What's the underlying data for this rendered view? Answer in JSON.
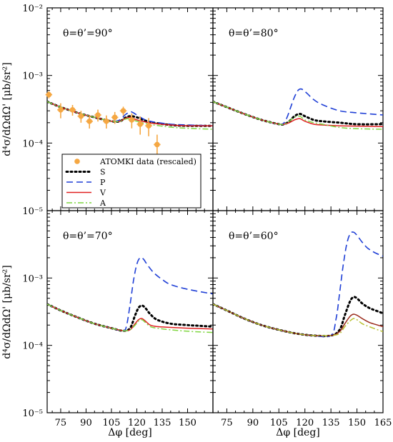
{
  "chart_data": {
    "type": "line",
    "shared_ylabel": "d⁴σ/dΩdΩ' [μb/sr²]",
    "shared_xlabel": "Δφ [deg]",
    "ylim": [
      1e-05,
      0.01
    ],
    "yscale": "log",
    "xlim": [
      67,
      165
    ],
    "x_ticks": [
      75,
      90,
      105,
      120,
      135,
      150,
      165
    ],
    "y_tick_labels": [
      "10⁻⁵",
      "10⁻⁴",
      "10⁻³",
      "10⁻²"
    ],
    "legend": {
      "placement": "lower-left of top-left panel",
      "entries": [
        {
          "label": "ATOMKI data (rescaled)",
          "style": "marker",
          "color": "#f5a742"
        },
        {
          "label": "S",
          "style": "dotted",
          "color": "#000000"
        },
        {
          "label": "P",
          "style": "dashed",
          "color": "#1f3fd6"
        },
        {
          "label": "V",
          "style": "solid",
          "color": "#e02020"
        },
        {
          "label": "A",
          "style": "dashdot",
          "color": "#7fd640"
        }
      ]
    },
    "panels": [
      {
        "id": "p90",
        "label": "θ=θ’=90°",
        "series": [
          {
            "name": "S",
            "x": [
              67,
              75,
              85,
              95,
              105,
              110,
              113,
              116,
              120,
              125,
              130,
              140,
              150,
              165
            ],
            "y": [
              0.00041,
              0.00034,
              0.00028,
              0.00024,
              0.00021,
              0.00021,
              0.000235,
              0.00025,
              0.00024,
              0.000215,
              0.0002,
              0.000185,
              0.00018,
              0.00018
            ]
          },
          {
            "name": "P",
            "x": [
              67,
              75,
              85,
              95,
              105,
              110,
              113,
              116,
              118,
              120,
              125,
              130,
              140,
              150,
              165
            ],
            "y": [
              0.00041,
              0.00034,
              0.00028,
              0.00024,
              0.00021,
              0.00022,
              0.00026,
              0.00029,
              0.00028,
              0.00026,
              0.00022,
              0.000205,
              0.00019,
              0.000185,
              0.00018
            ]
          },
          {
            "name": "V",
            "x": [
              67,
              75,
              85,
              95,
              105,
              110,
              113,
              116,
              120,
              125,
              130,
              140,
              150,
              165
            ],
            "y": [
              0.00041,
              0.00034,
              0.00028,
              0.00024,
              0.00021,
              0.00021,
              0.00023,
              0.00024,
              0.00022,
              0.000205,
              0.000195,
              0.000185,
              0.00018,
              0.00018
            ]
          },
          {
            "name": "A",
            "x": [
              67,
              75,
              85,
              95,
              105,
              110,
              113,
              116,
              120,
              125,
              130,
              140,
              150,
              165
            ],
            "y": [
              0.00041,
              0.00034,
              0.00028,
              0.00024,
              0.00021,
              0.00021,
              0.000225,
              0.00023,
              0.00021,
              0.000195,
              0.000185,
              0.000172,
              0.000165,
              0.00016
            ]
          }
        ],
        "data_points": {
          "name": "ATOMKI data (rescaled)",
          "x": [
            68,
            75,
            82,
            87,
            92,
            97,
            102,
            107,
            112,
            117,
            122,
            127,
            132
          ],
          "y": [
            0.00052,
            0.00031,
            0.00031,
            0.00025,
            0.00021,
            0.00026,
            0.00021,
            0.00024,
            0.0003,
            0.00022,
            0.00019,
            0.00018,
            9.5e-05
          ],
          "xerr": [
            2,
            2,
            2,
            2,
            2,
            2,
            2,
            2,
            2,
            2,
            2,
            2,
            2
          ],
          "yerr_frac": [
            0.12,
            0.25,
            0.18,
            0.2,
            0.22,
            0.2,
            0.22,
            0.2,
            0.15,
            0.25,
            0.3,
            0.3,
            0.4
          ]
        }
      },
      {
        "id": "p80",
        "label": "θ=θ’=80°",
        "series": [
          {
            "name": "S",
            "x": [
              67,
              75,
              85,
              95,
              105,
              108,
              111,
              114,
              117,
              120,
              125,
              130,
              140,
              150,
              165
            ],
            "y": [
              0.00041,
              0.00034,
              0.00027,
              0.00022,
              0.00019,
              0.00019,
              0.00021,
              0.00025,
              0.00027,
              0.00025,
              0.00022,
              0.00021,
              0.0002,
              0.00019,
              0.00019
            ]
          },
          {
            "name": "P",
            "x": [
              67,
              75,
              85,
              95,
              105,
              108,
              110,
              112,
              114,
              116,
              118,
              121,
              125,
              130,
              140,
              150,
              165
            ],
            "y": [
              0.00041,
              0.00034,
              0.00027,
              0.00022,
              0.00019,
              0.0002,
              0.00025,
              0.00035,
              0.00048,
              0.0006,
              0.00063,
              0.00055,
              0.00044,
              0.00037,
              0.0003,
              0.00028,
              0.00026
            ]
          },
          {
            "name": "V",
            "x": [
              67,
              75,
              85,
              95,
              105,
              108,
              111,
              114,
              117,
              120,
              125,
              130,
              140,
              150,
              165
            ],
            "y": [
              0.00041,
              0.00034,
              0.00027,
              0.00022,
              0.00019,
              0.00019,
              0.0002,
              0.00022,
              0.00023,
              0.00021,
              0.00019,
              0.000185,
              0.00018,
              0.000178,
              0.000175
            ]
          },
          {
            "name": "A",
            "x": [
              67,
              75,
              85,
              95,
              105,
              108,
              111,
              114,
              117,
              120,
              125,
              130,
              140,
              150,
              165
            ],
            "y": [
              0.00041,
              0.00034,
              0.00027,
              0.00022,
              0.00019,
              0.00019,
              0.00021,
              0.00024,
              0.00025,
              0.00022,
              0.0002,
              0.00019,
              0.00017,
              0.000163,
              0.00016
            ]
          }
        ]
      },
      {
        "id": "p70",
        "label": "θ=θ’=70°",
        "series": [
          {
            "name": "S",
            "x": [
              67,
              75,
              85,
              95,
              105,
              112,
              116,
              119,
              121,
              123,
              125,
              128,
              132,
              140,
              150,
              165
            ],
            "y": [
              0.00041,
              0.00033,
              0.00026,
              0.00021,
              0.00018,
              0.000165,
              0.00018,
              0.00028,
              0.00036,
              0.00039,
              0.00036,
              0.00029,
              0.00024,
              0.00021,
              0.0002,
              0.00019
            ]
          },
          {
            "name": "P",
            "x": [
              67,
              75,
              85,
              95,
              105,
              112,
              114,
              116,
              118,
              120,
              122,
              124,
              126,
              130,
              135,
              140,
              150,
              165
            ],
            "y": [
              0.00041,
              0.00033,
              0.00026,
              0.00021,
              0.00018,
              0.000165,
              0.0002,
              0.0004,
              0.0009,
              0.0016,
              0.002,
              0.0019,
              0.0016,
              0.0012,
              0.00095,
              0.0008,
              0.00068,
              0.00058
            ]
          },
          {
            "name": "V",
            "x": [
              67,
              75,
              85,
              95,
              105,
              112,
              116,
              119,
              121,
              123,
              125,
              128,
              132,
              140,
              150,
              165
            ],
            "y": [
              0.00041,
              0.00033,
              0.00026,
              0.00021,
              0.00018,
              0.000165,
              0.00017,
              0.00021,
              0.00024,
              0.00025,
              0.00023,
              0.0002,
              0.00019,
              0.000185,
              0.00018,
              0.000175
            ]
          },
          {
            "name": "A",
            "x": [
              67,
              75,
              85,
              95,
              105,
              112,
              116,
              119,
              121,
              123,
              125,
              128,
              132,
              140,
              150,
              165
            ],
            "y": [
              0.00041,
              0.00033,
              0.00026,
              0.00021,
              0.00018,
              0.000165,
              0.00017,
              0.0002,
              0.00023,
              0.00024,
              0.00022,
              0.00019,
              0.00018,
              0.00017,
              0.000162,
              0.000155
            ]
          }
        ]
      },
      {
        "id": "p60",
        "label": "θ=θ’=60°",
        "series": [
          {
            "name": "S",
            "x": [
              67,
              75,
              85,
              95,
              105,
              115,
              125,
              135,
              140,
              143,
              146,
              148,
              150,
              153,
              157,
              162,
              165
            ],
            "y": [
              0.00041,
              0.00033,
              0.00025,
              0.0002,
              0.00017,
              0.00015,
              0.00014,
              0.00014,
              0.00017,
              0.00028,
              0.00045,
              0.00052,
              0.0005,
              0.00042,
              0.00036,
              0.00032,
              0.0003
            ]
          },
          {
            "name": "P",
            "x": [
              67,
              75,
              85,
              95,
              105,
              115,
              125,
              135,
              138,
              140,
              142,
              144,
              146,
              148,
              150,
              153,
              156,
              160,
              165
            ],
            "y": [
              0.00041,
              0.00033,
              0.00025,
              0.0002,
              0.00017,
              0.00015,
              0.00014,
              0.00014,
              0.00025,
              0.0006,
              0.0015,
              0.0031,
              0.0045,
              0.0048,
              0.0043,
              0.0034,
              0.0028,
              0.0024,
              0.0021
            ]
          },
          {
            "name": "V",
            "x": [
              67,
              75,
              85,
              95,
              105,
              115,
              125,
              135,
              140,
              143,
              146,
              148,
              150,
              153,
              157,
              162,
              165
            ],
            "y": [
              0.00041,
              0.00033,
              0.00025,
              0.0002,
              0.00017,
              0.00015,
              0.00014,
              0.00014,
              0.00016,
              0.00021,
              0.00027,
              0.00029,
              0.00028,
              0.00025,
              0.00022,
              0.0002,
              0.00019
            ]
          },
          {
            "name": "A",
            "x": [
              67,
              75,
              85,
              95,
              105,
              115,
              125,
              135,
              140,
              143,
              146,
              148,
              150,
              153,
              157,
              162,
              165
            ],
            "y": [
              0.00041,
              0.00033,
              0.00025,
              0.0002,
              0.00017,
              0.00015,
              0.00014,
              0.00014,
              0.00015,
              0.00019,
              0.00023,
              0.00025,
              0.00024,
              0.00021,
              0.00019,
              0.00017,
              0.00016
            ]
          }
        ]
      }
    ],
    "colors": {
      "S": "#000000",
      "P": "#1f3fd6",
      "V": "#e02020",
      "A": "#7fd640",
      "V60": "#9b2a1a",
      "A60": "#b8c030",
      "data": "#f5a742"
    }
  }
}
